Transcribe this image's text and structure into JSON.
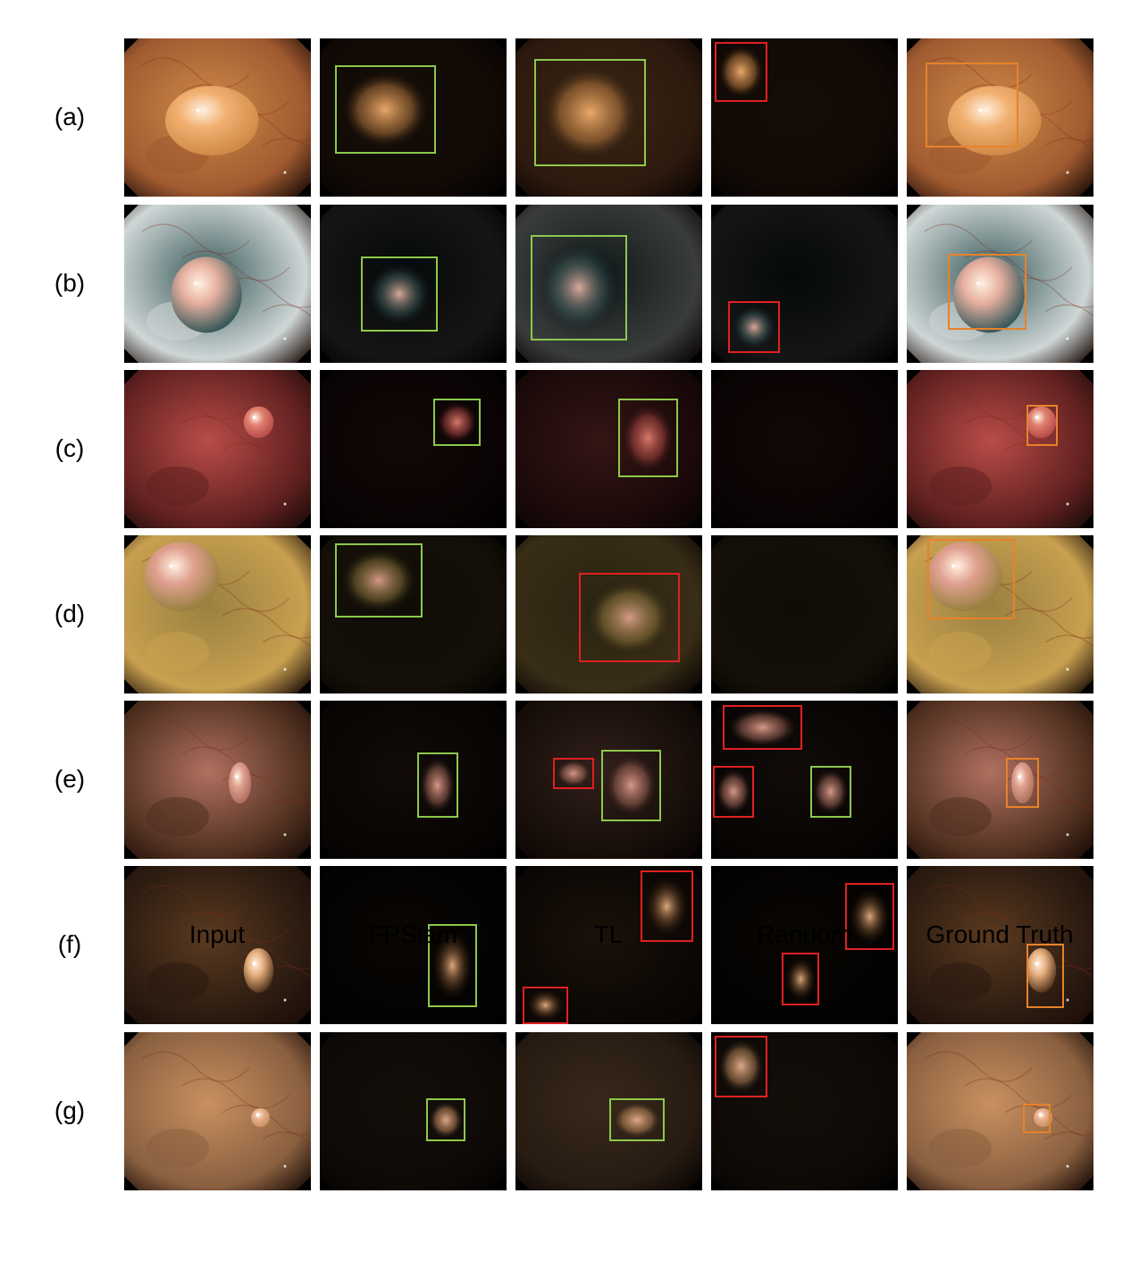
{
  "columns": [
    "Input",
    "FPSiam",
    "TL",
    "Random",
    "Ground Truth"
  ],
  "rows": [
    {
      "label": "(a)",
      "palette": [
        "#d08a48",
        "#f2b070",
        "#a05a30"
      ],
      "polyp": [
        0.47,
        0.52,
        0.25,
        0.22
      ],
      "boxes": {
        "FPSiam": [
          [
            0.08,
            0.17,
            0.62,
            0.73,
            "pred"
          ]
        ],
        "TL": [
          [
            0.1,
            0.13,
            0.7,
            0.81,
            "pred"
          ]
        ],
        "Random": [
          [
            0.02,
            0.02,
            0.3,
            0.4,
            "wrong"
          ]
        ],
        "Ground Truth": [
          [
            0.1,
            0.15,
            0.6,
            0.69,
            "gt"
          ]
        ]
      }
    },
    {
      "label": "(b)",
      "palette": [
        "#3a5a5a",
        "#e8b0a0",
        "#cfd6d6"
      ],
      "polyp": [
        0.44,
        0.57,
        0.19,
        0.24
      ],
      "boxes": {
        "FPSiam": [
          [
            0.22,
            0.33,
            0.63,
            0.8,
            "pred"
          ]
        ],
        "TL": [
          [
            0.08,
            0.19,
            0.6,
            0.86,
            "pred"
          ]
        ],
        "Random": [
          [
            0.09,
            0.61,
            0.37,
            0.94,
            "wrong"
          ]
        ],
        "Ground Truth": [
          [
            0.22,
            0.31,
            0.64,
            0.79,
            "gt"
          ]
        ]
      }
    },
    {
      "label": "(c)",
      "palette": [
        "#b84c48",
        "#e08070",
        "#602020"
      ],
      "polyp": [
        0.72,
        0.33,
        0.08,
        0.1
      ],
      "boxes": {
        "FPSiam": [
          [
            0.61,
            0.18,
            0.86,
            0.48,
            "pred"
          ]
        ],
        "TL": [
          [
            0.55,
            0.18,
            0.87,
            0.68,
            "pred"
          ]
        ],
        "Random": [],
        "Ground Truth": [
          [
            0.64,
            0.22,
            0.81,
            0.48,
            "gt"
          ]
        ]
      }
    },
    {
      "label": "(d)",
      "palette": [
        "#9a8040",
        "#e0a090",
        "#c8a050"
      ],
      "polyp": [
        0.31,
        0.26,
        0.2,
        0.22
      ],
      "boxes": {
        "FPSiam": [
          [
            0.08,
            0.05,
            0.55,
            0.52,
            "pred"
          ]
        ],
        "TL": [
          [
            0.34,
            0.24,
            0.88,
            0.8,
            "wrong"
          ]
        ],
        "Random": [],
        "Ground Truth": [
          [
            0.11,
            0.02,
            0.58,
            0.53,
            "gt"
          ]
        ]
      }
    },
    {
      "label": "(e)",
      "palette": [
        "#b07060",
        "#e0a090",
        "#503020"
      ],
      "polyp": [
        0.62,
        0.52,
        0.06,
        0.13
      ],
      "boxes": {
        "FPSiam": [
          [
            0.52,
            0.33,
            0.74,
            0.74,
            "pred"
          ]
        ],
        "TL": [
          [
            0.2,
            0.36,
            0.42,
            0.56,
            "wrong"
          ],
          [
            0.46,
            0.31,
            0.78,
            0.76,
            "pred"
          ]
        ],
        "Random": [
          [
            0.06,
            0.03,
            0.49,
            0.31,
            "wrong"
          ],
          [
            0.01,
            0.41,
            0.23,
            0.74,
            "wrong"
          ],
          [
            0.53,
            0.41,
            0.75,
            0.74,
            "pred"
          ]
        ],
        "Ground Truth": [
          [
            0.53,
            0.36,
            0.71,
            0.68,
            "gt"
          ]
        ]
      }
    },
    {
      "label": "(f)",
      "palette": [
        "#5a3a20",
        "#e8b080",
        "#2a1a10"
      ],
      "polyp": [
        0.72,
        0.66,
        0.08,
        0.14
      ],
      "boxes": {
        "FPSiam": [
          [
            0.58,
            0.37,
            0.84,
            0.89,
            "pred"
          ]
        ],
        "TL": [
          [
            0.67,
            0.03,
            0.95,
            0.48,
            "wrong"
          ],
          [
            0.04,
            0.76,
            0.28,
            1.0,
            "wrong"
          ]
        ],
        "Random": [
          [
            0.72,
            0.11,
            0.98,
            0.53,
            "wrong"
          ],
          [
            0.38,
            0.55,
            0.58,
            0.88,
            "wrong"
          ]
        ],
        "Ground Truth": [
          [
            0.64,
            0.49,
            0.84,
            0.9,
            "gt"
          ]
        ]
      }
    },
    {
      "label": "(g)",
      "palette": [
        "#c89060",
        "#e8b090",
        "#8a6040"
      ],
      "polyp": [
        0.73,
        0.54,
        0.05,
        0.06
      ],
      "boxes": {
        "FPSiam": [
          [
            0.57,
            0.42,
            0.78,
            0.69,
            "pred"
          ]
        ],
        "TL": [
          [
            0.5,
            0.42,
            0.8,
            0.69,
            "pred"
          ]
        ],
        "Random": [
          [
            0.02,
            0.02,
            0.3,
            0.41,
            "wrong"
          ]
        ],
        "Ground Truth": [
          [
            0.62,
            0.45,
            0.77,
            0.64,
            "gt"
          ]
        ]
      }
    }
  ]
}
